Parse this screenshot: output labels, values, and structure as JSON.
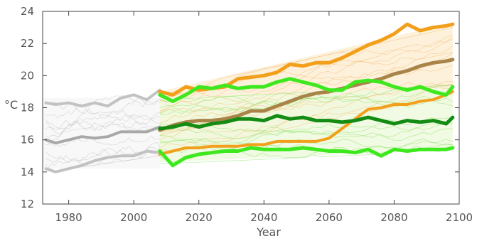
{
  "chart_data": {
    "type": "line",
    "title": "",
    "xlabel": "Year",
    "ylabel": "°C",
    "xlim": [
      1972,
      2100
    ],
    "ylim": [
      12,
      24
    ],
    "x_ticks": [
      1980,
      2000,
      2020,
      2040,
      2060,
      2080,
      2100
    ],
    "y_ticks": [
      12,
      14,
      16,
      18,
      20,
      22,
      24
    ],
    "grid": false,
    "legend": "none",
    "bands": [
      {
        "range": [
          1972,
          2008
        ],
        "color": "#f7f7f7",
        "lower": 14.2,
        "upper": 18.6
      },
      {
        "range": [
          2008,
          2098
        ],
        "color": "#fdeed6",
        "lower_start": 15.1,
        "lower_end": 19.0,
        "upper_start": 19.0,
        "upper_end": 23.3
      },
      {
        "range": [
          2008,
          2098
        ],
        "color": "#eef9dd",
        "lower_start": 14.6,
        "lower_end": 15.4,
        "upper_start": 18.6,
        "upper_end": 19.3
      }
    ],
    "series": [
      {
        "color": "#c2c2c2",
        "width": 4,
        "x": [
          1973,
          1976,
          1980,
          1984,
          1988,
          1992,
          1996,
          2000,
          2004,
          2008
        ],
        "y": [
          18.3,
          18.2,
          18.3,
          18.1,
          18.3,
          18.1,
          18.6,
          18.8,
          18.5,
          19.1
        ]
      },
      {
        "color": "#a8a8a8",
        "width": 4,
        "x": [
          1973,
          1976,
          1980,
          1984,
          1988,
          1992,
          1996,
          2000,
          2004,
          2008
        ],
        "y": [
          16.0,
          15.8,
          16.0,
          16.2,
          16.1,
          16.2,
          16.5,
          16.5,
          16.5,
          16.8
        ]
      },
      {
        "color": "#c2c2c2",
        "width": 4,
        "x": [
          1973,
          1976,
          1980,
          1984,
          1988,
          1992,
          1996,
          2000,
          2004,
          2008
        ],
        "y": [
          14.2,
          14.0,
          14.2,
          14.4,
          14.7,
          14.9,
          15.0,
          15.0,
          15.3,
          15.2
        ]
      },
      {
        "color": "#f2a01b",
        "width": 5,
        "x": [
          2008,
          2012,
          2016,
          2020,
          2024,
          2028,
          2032,
          2036,
          2040,
          2044,
          2048,
          2052,
          2056,
          2060,
          2064,
          2068,
          2072,
          2076,
          2080,
          2084,
          2088,
          2092,
          2096,
          2098
        ],
        "y": [
          19.0,
          18.8,
          19.3,
          19.1,
          19.2,
          19.3,
          19.8,
          19.9,
          20.0,
          20.2,
          20.7,
          20.6,
          20.8,
          20.8,
          21.1,
          21.5,
          21.9,
          22.2,
          22.6,
          23.2,
          22.8,
          23.0,
          23.1,
          23.2
        ]
      },
      {
        "color": "#f2a01b",
        "width": 4,
        "x": [
          2008,
          2012,
          2016,
          2020,
          2024,
          2028,
          2032,
          2036,
          2040,
          2044,
          2048,
          2052,
          2056,
          2060,
          2064,
          2068,
          2072,
          2076,
          2080,
          2084,
          2088,
          2092,
          2096,
          2098
        ],
        "y": [
          15.1,
          15.3,
          15.5,
          15.5,
          15.6,
          15.6,
          15.6,
          15.7,
          15.7,
          15.9,
          15.9,
          15.9,
          15.9,
          16.1,
          16.7,
          17.3,
          17.9,
          18.0,
          18.2,
          18.2,
          18.4,
          18.5,
          18.8,
          19.0
        ]
      },
      {
        "color": "#a98449",
        "width": 5,
        "x": [
          2008,
          2012,
          2016,
          2020,
          2024,
          2028,
          2032,
          2036,
          2040,
          2044,
          2048,
          2052,
          2056,
          2060,
          2064,
          2068,
          2072,
          2076,
          2080,
          2084,
          2088,
          2092,
          2096,
          2098
        ],
        "y": [
          16.6,
          16.9,
          17.1,
          17.2,
          17.2,
          17.3,
          17.5,
          17.8,
          17.8,
          18.1,
          18.4,
          18.7,
          18.9,
          19.0,
          19.2,
          19.4,
          19.6,
          19.8,
          20.1,
          20.3,
          20.6,
          20.8,
          20.9,
          21.0
        ]
      },
      {
        "color": "#3ee81f",
        "width": 5,
        "x": [
          2008,
          2012,
          2016,
          2020,
          2024,
          2028,
          2032,
          2036,
          2040,
          2044,
          2048,
          2052,
          2056,
          2060,
          2064,
          2068,
          2072,
          2076,
          2080,
          2084,
          2088,
          2092,
          2096,
          2098
        ],
        "y": [
          18.8,
          18.4,
          18.8,
          19.3,
          19.2,
          19.4,
          19.2,
          19.3,
          19.3,
          19.6,
          19.8,
          19.6,
          19.4,
          19.1,
          19.1,
          19.6,
          19.7,
          19.6,
          19.3,
          19.1,
          19.3,
          19.0,
          18.8,
          19.3
        ]
      },
      {
        "color": "#148c14",
        "width": 5,
        "x": [
          2008,
          2012,
          2016,
          2020,
          2024,
          2028,
          2032,
          2036,
          2040,
          2044,
          2048,
          2052,
          2056,
          2060,
          2064,
          2068,
          2072,
          2076,
          2080,
          2084,
          2088,
          2092,
          2096,
          2098
        ],
        "y": [
          16.7,
          16.8,
          17.0,
          16.8,
          17.0,
          17.1,
          17.3,
          17.3,
          17.2,
          17.5,
          17.3,
          17.4,
          17.2,
          17.2,
          17.1,
          17.2,
          17.4,
          17.2,
          17.0,
          17.2,
          17.1,
          17.2,
          17.0,
          17.4
        ]
      },
      {
        "color": "#3ee81f",
        "width": 5,
        "x": [
          2008,
          2012,
          2016,
          2020,
          2024,
          2028,
          2032,
          2036,
          2040,
          2044,
          2048,
          2052,
          2056,
          2060,
          2064,
          2068,
          2072,
          2076,
          2080,
          2084,
          2088,
          2092,
          2096,
          2098
        ],
        "y": [
          15.3,
          14.4,
          14.9,
          15.1,
          15.2,
          15.3,
          15.3,
          15.5,
          15.4,
          15.4,
          15.4,
          15.5,
          15.4,
          15.3,
          15.3,
          15.2,
          15.4,
          15.0,
          15.4,
          15.3,
          15.4,
          15.4,
          15.4,
          15.5
        ]
      }
    ]
  }
}
